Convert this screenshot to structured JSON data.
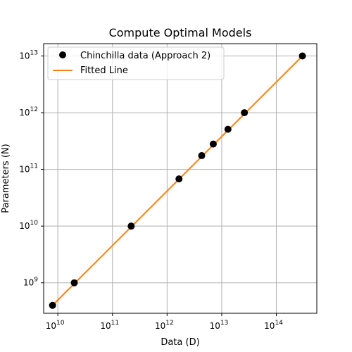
{
  "chart_data": {
    "type": "scatter",
    "title": "Compute Optimal Models",
    "xlabel": "Data (D)",
    "ylabel": "Parameters (N)",
    "xscale": "log",
    "yscale": "log",
    "xlim": [
      5500000000.0,
      550000000000000.0
    ],
    "ylim": [
      290000000.0,
      16500000000000.0
    ],
    "grid": true,
    "legend_position": "top-left",
    "x_ticks": [
      {
        "value": 10000000000.0,
        "base": "10",
        "exp": "10"
      },
      {
        "value": 100000000000.0,
        "base": "10",
        "exp": "11"
      },
      {
        "value": 1000000000000.0,
        "base": "10",
        "exp": "12"
      },
      {
        "value": 10000000000000.0,
        "base": "10",
        "exp": "13"
      },
      {
        "value": 100000000000000.0,
        "base": "10",
        "exp": "14"
      }
    ],
    "y_ticks": [
      {
        "value": 1000000000.0,
        "base": "10",
        "exp": "9"
      },
      {
        "value": 10000000000.0,
        "base": "10",
        "exp": "10"
      },
      {
        "value": 100000000000.0,
        "base": "10",
        "exp": "11"
      },
      {
        "value": 1000000000000.0,
        "base": "10",
        "exp": "12"
      },
      {
        "value": 10000000000000.0,
        "base": "10",
        "exp": "13"
      }
    ],
    "series": [
      {
        "name": "Chinchilla data (Approach 2)",
        "kind": "scatter",
        "color": "#000000",
        "points": [
          {
            "x": 8000000000.0,
            "y": 400000000.0
          },
          {
            "x": 20000000000.0,
            "y": 1000000000.0
          },
          {
            "x": 220000000000.0,
            "y": 10000000000.0
          },
          {
            "x": 1650000000000.0,
            "y": 68000000000.0
          },
          {
            "x": 4300000000000.0,
            "y": 175000000000.0
          },
          {
            "x": 7000000000000.0,
            "y": 280000000000.0
          },
          {
            "x": 13000000000000.0,
            "y": 510000000000.0
          },
          {
            "x": 26000000000000.0,
            "y": 1000000000000.0
          },
          {
            "x": 300000000000000.0,
            "y": 10000000000000.0
          }
        ]
      },
      {
        "name": "Fitted Line",
        "kind": "line",
        "color": "#ff7f0e",
        "points": [
          {
            "x": 8000000000.0,
            "y": 400000000.0
          },
          {
            "x": 300000000000000.0,
            "y": 10000000000000.0
          }
        ]
      }
    ]
  }
}
